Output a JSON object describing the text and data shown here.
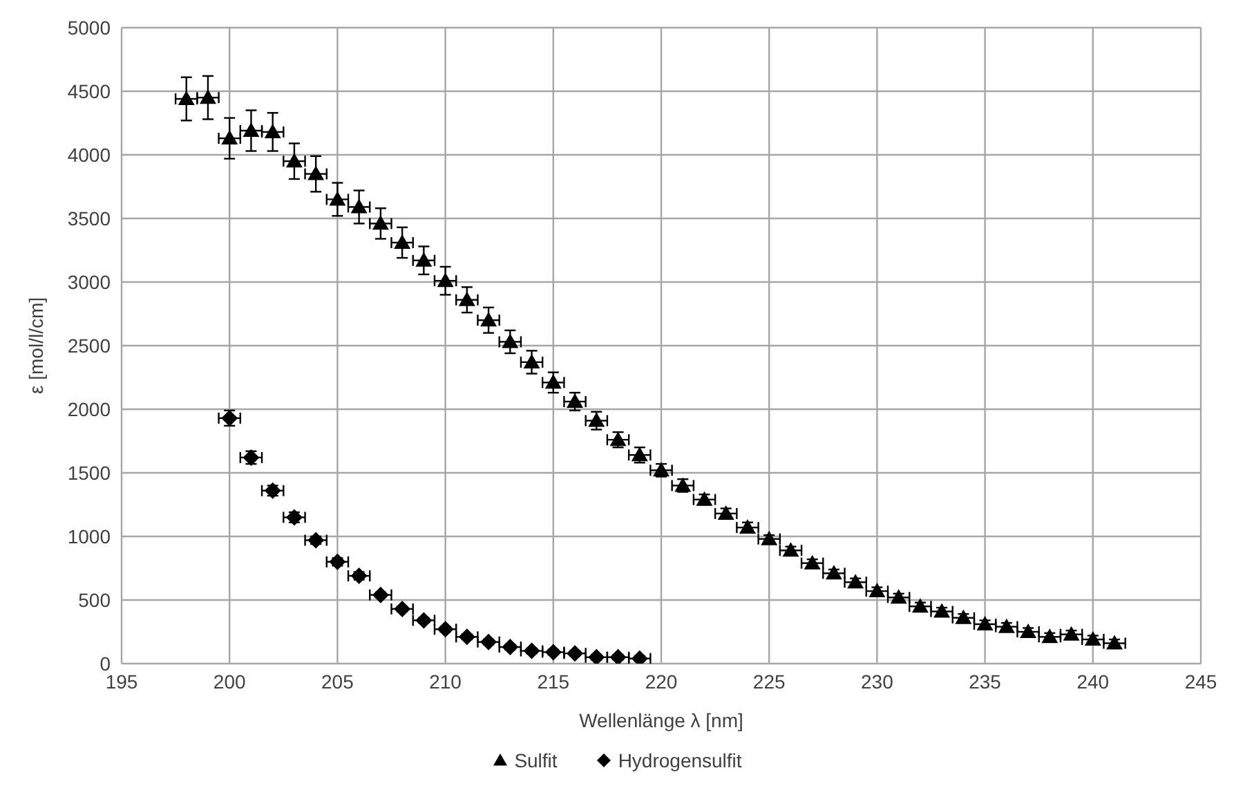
{
  "chart_data": {
    "type": "scatter",
    "xlabel": "Wellenlänge  λ [nm]",
    "ylabel": "ε [mol/l/cm]",
    "xlim": [
      195,
      245
    ],
    "xticks": [
      195,
      200,
      205,
      210,
      215,
      220,
      225,
      230,
      235,
      240,
      245
    ],
    "ylim": [
      0,
      5000
    ],
    "yticks": [
      0,
      500,
      1000,
      1500,
      2000,
      2500,
      3000,
      3500,
      4000,
      4500,
      5000
    ],
    "grid": true,
    "legend": "bottom",
    "series": [
      {
        "name": "Sulfit",
        "color": "#000000",
        "marker": "triangle",
        "x": [
          198,
          199,
          200,
          201,
          202,
          203,
          204,
          205,
          206,
          207,
          208,
          209,
          210,
          211,
          212,
          213,
          214,
          215,
          216,
          217,
          218,
          219,
          220,
          221,
          222,
          223,
          224,
          225,
          226,
          227,
          228,
          229,
          230,
          231,
          232,
          233,
          234,
          235,
          236,
          237,
          238,
          239,
          240,
          241
        ],
        "values": [
          4440,
          4450,
          4130,
          4190,
          4180,
          3950,
          3850,
          3650,
          3590,
          3460,
          3310,
          3170,
          3010,
          2860,
          2700,
          2530,
          2370,
          2210,
          2060,
          1910,
          1760,
          1640,
          1520,
          1400,
          1290,
          1180,
          1070,
          980,
          890,
          790,
          710,
          640,
          570,
          520,
          450,
          410,
          360,
          310,
          290,
          250,
          210,
          230,
          190,
          160
        ],
        "errors": [
          170,
          170,
          160,
          160,
          150,
          140,
          140,
          130,
          130,
          120,
          120,
          110,
          110,
          100,
          100,
          90,
          90,
          80,
          70,
          70,
          60,
          60,
          50,
          50,
          40,
          40,
          40,
          30,
          30,
          30,
          30,
          30,
          30,
          30,
          30,
          30,
          30,
          30,
          30,
          30,
          30,
          30,
          30,
          30
        ],
        "xerrors": [
          0.5,
          0.5,
          0.5,
          0.5,
          0.5,
          0.5,
          0.5,
          0.5,
          0.5,
          0.5,
          0.5,
          0.5,
          0.5,
          0.5,
          0.5,
          0.5,
          0.5,
          0.5,
          0.5,
          0.5,
          0.5,
          0.5,
          0.5,
          0.5,
          0.5,
          0.5,
          0.5,
          0.5,
          0.5,
          0.5,
          0.5,
          0.5,
          0.5,
          0.5,
          0.5,
          0.5,
          0.5,
          0.5,
          0.5,
          0.5,
          0.5,
          0.5,
          0.5,
          0.5
        ]
      },
      {
        "name": "Hydrogensulfit",
        "color": "#000000",
        "marker": "diamond",
        "x": [
          200,
          201,
          202,
          203,
          204,
          205,
          206,
          207,
          208,
          209,
          210,
          211,
          212,
          213,
          214,
          215,
          216,
          217,
          218,
          219
        ],
        "values": [
          1930,
          1620,
          1360,
          1150,
          970,
          800,
          690,
          540,
          430,
          340,
          270,
          210,
          170,
          130,
          100,
          90,
          80,
          50,
          50,
          40
        ],
        "errors": [
          60,
          50,
          40,
          40,
          30,
          30,
          30,
          20,
          20,
          20,
          20,
          20,
          20,
          20,
          20,
          20,
          20,
          20,
          20,
          20
        ],
        "xerrors": [
          0.5,
          0.5,
          0.5,
          0.5,
          0.5,
          0.5,
          0.5,
          0.5,
          0.5,
          0.5,
          0.5,
          0.5,
          0.5,
          0.5,
          0.5,
          0.5,
          0.5,
          0.5,
          0.5,
          0.5
        ]
      }
    ]
  }
}
